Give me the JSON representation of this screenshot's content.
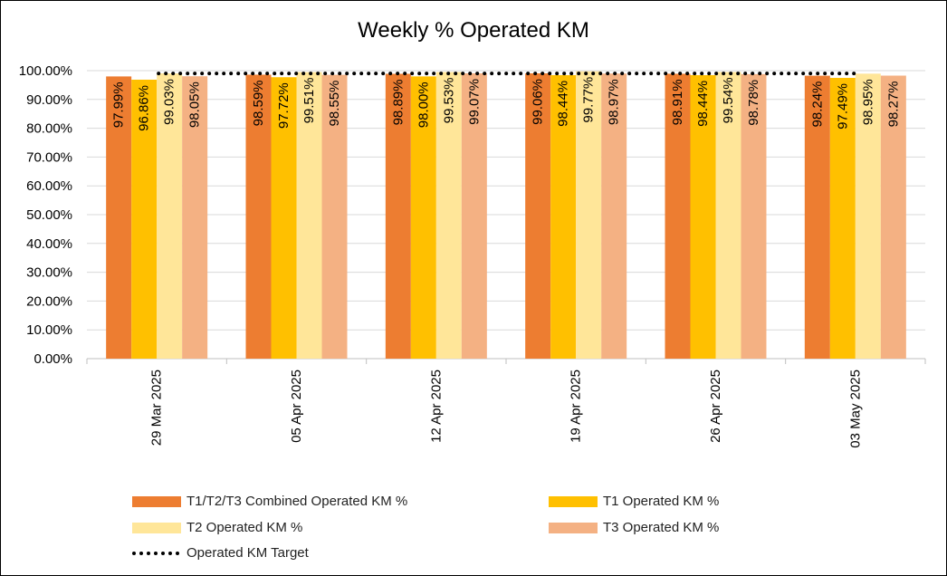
{
  "chart_data": {
    "type": "bar",
    "title": "Weekly % Operated KM",
    "categories": [
      "29 Mar 2025",
      "05 Apr 2025",
      "12 Apr 2025",
      "19 Apr 2025",
      "26 Apr 2025",
      "03 May 2025"
    ],
    "series": [
      {
        "name": "T1/T2/T3 Combined Operated KM %",
        "color": "#ED7D31",
        "values": [
          97.99,
          98.59,
          98.89,
          99.06,
          98.91,
          98.24
        ]
      },
      {
        "name": "T1 Operated KM %",
        "color": "#FFC000",
        "values": [
          96.86,
          97.72,
          98.0,
          98.44,
          98.44,
          97.49
        ]
      },
      {
        "name": "T2 Operated KM %",
        "color": "#FFE699",
        "values": [
          99.03,
          99.51,
          99.53,
          99.77,
          99.54,
          98.95
        ]
      },
      {
        "name": "T3 Operated KM %",
        "color": "#F4B183",
        "values": [
          98.05,
          98.55,
          99.07,
          98.97,
          98.78,
          98.27
        ]
      }
    ],
    "target": {
      "name": "Operated KM Target",
      "value": 99,
      "style": "dotted",
      "color": "#000000"
    },
    "ylim": [
      0,
      100
    ],
    "yticks": [
      0,
      10,
      20,
      30,
      40,
      50,
      60,
      70,
      80,
      90,
      100
    ],
    "ytick_format": "percent-2dp",
    "data_labels": "inside-bar-vertical",
    "grid": true,
    "legend_position": "bottom"
  }
}
